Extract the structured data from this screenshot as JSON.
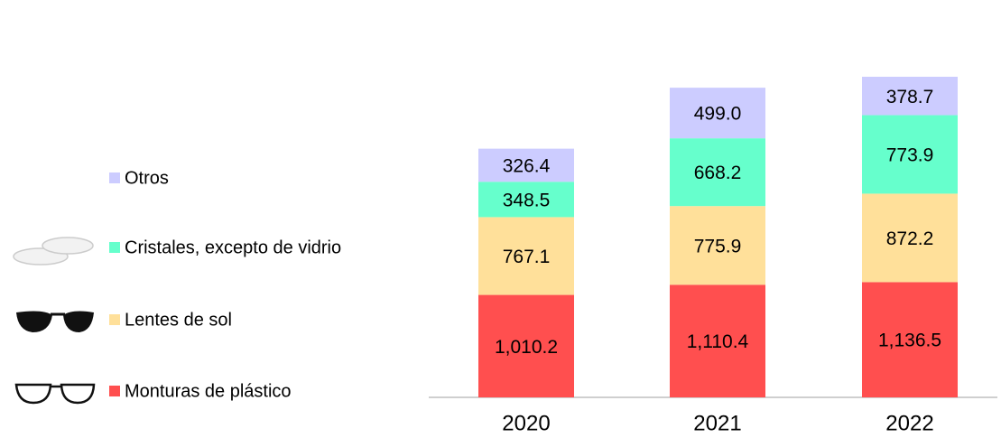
{
  "chart_data": {
    "type": "stacked_bar",
    "categories": [
      "2020",
      "2021",
      "2022"
    ],
    "series": [
      {
        "name": "Monturas de plástico",
        "color": "#ff4f4f",
        "values": [
          1010.2,
          1110.4,
          1136.5
        ],
        "value_labels": [
          "1,010.2",
          "1,110.4",
          "1,136.5"
        ]
      },
      {
        "name": "Lentes de sol",
        "color": "#ffe09a",
        "values": [
          767.1,
          775.9,
          872.2
        ],
        "value_labels": [
          "767.1",
          "775.9",
          "872.2"
        ]
      },
      {
        "name": "Cristales, excepto de vidrio",
        "color": "#66ffcc",
        "values": [
          348.5,
          668.2,
          773.9
        ],
        "value_labels": [
          "348.5",
          "668.2",
          "773.9"
        ]
      },
      {
        "name": "Otros",
        "color": "#ccccff",
        "values": [
          326.4,
          499.0,
          378.7
        ],
        "value_labels": [
          "326.4",
          "499.0",
          "378.7"
        ]
      }
    ]
  }
}
